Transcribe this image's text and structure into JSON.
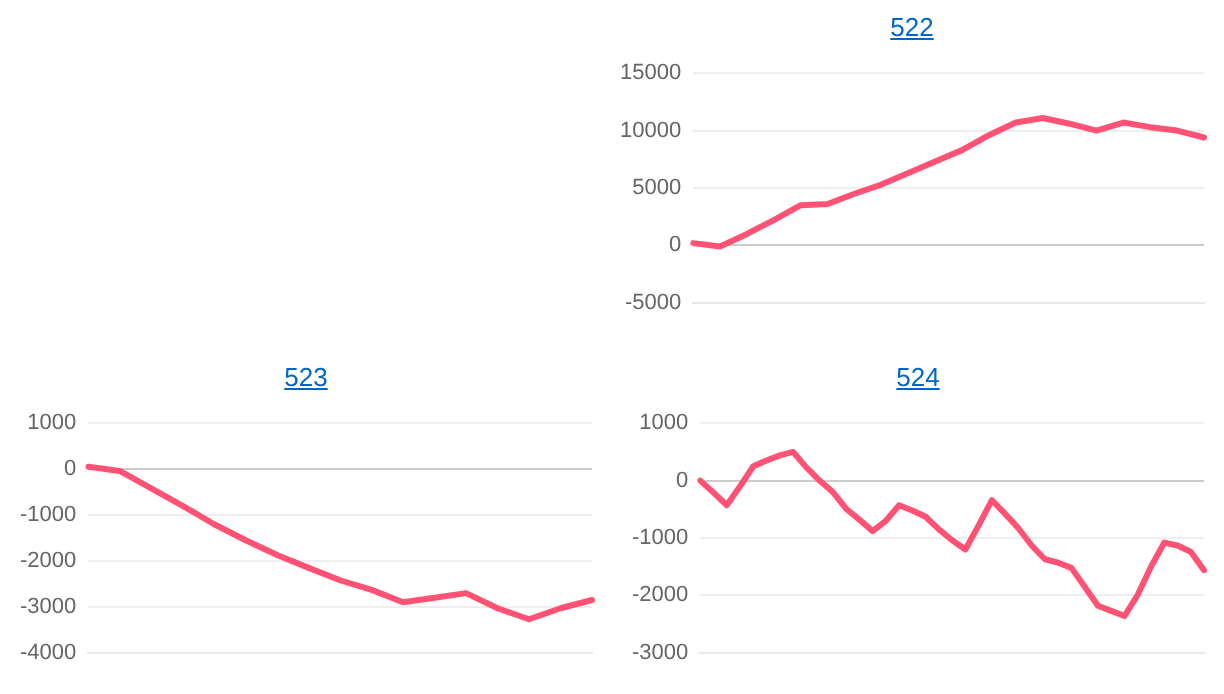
{
  "chart_data": [
    {
      "type": "line",
      "title": "522",
      "categories": [
        null,
        null,
        null,
        null,
        null,
        null,
        null,
        null,
        null,
        null,
        null,
        null,
        null,
        null,
        null,
        null,
        null,
        null,
        null,
        null
      ],
      "tick_labels": "y",
      "grid": "y",
      "marker": "none",
      "series": [
        {
          "color": "#ff5274",
          "values": [
            200,
            -100,
            1000,
            2200,
            3500,
            3600,
            4500,
            5300,
            6300,
            7300,
            8300,
            9600,
            10700,
            11100,
            10600,
            10000,
            10700,
            10300,
            10000,
            9400
          ]
        }
      ],
      "ylim": [
        -5000,
        15000
      ],
      "yticks": [
        -5000,
        0,
        5000,
        10000,
        15000
      ]
    },
    {
      "type": "line",
      "title": "523",
      "categories": [
        null,
        null,
        null,
        null,
        null,
        null,
        null,
        null,
        null,
        null,
        null,
        null,
        null,
        null,
        null,
        null,
        null
      ],
      "tick_labels": "y",
      "grid": "y",
      "marker": "none",
      "series": [
        {
          "color": "#ff5274",
          "values": [
            50,
            -40,
            -420,
            -800,
            -1200,
            -1550,
            -1870,
            -2150,
            -2420,
            -2630,
            -2900,
            -2800,
            -2700,
            -3030,
            -3270,
            -3030,
            -2850
          ]
        }
      ],
      "ylim": [
        -4000,
        1000
      ],
      "yticks": [
        -4000,
        -3000,
        -2000,
        -1000,
        0,
        1000
      ]
    },
    {
      "type": "line",
      "title": "524",
      "categories": [
        null,
        null,
        null,
        null,
        null,
        null,
        null,
        null,
        null,
        null,
        null,
        null,
        null,
        null,
        null,
        null,
        null,
        null,
        null,
        null,
        null,
        null,
        null,
        null,
        null,
        null,
        null,
        null,
        null,
        null,
        null,
        null,
        null,
        null,
        null,
        null,
        null,
        null,
        null
      ],
      "tick_labels": "y",
      "grid": "y",
      "marker": "none",
      "series": [
        {
          "color": "#ff5274",
          "values": [
            0,
            -210,
            -430,
            -100,
            250,
            350,
            440,
            500,
            230,
            0,
            -200,
            -490,
            -680,
            -880,
            -700,
            -430,
            -520,
            -630,
            -850,
            -1040,
            -1200,
            -780,
            -340,
            -580,
            -830,
            -1130,
            -1370,
            -1430,
            -1520,
            -1850,
            -2180,
            -2270,
            -2360,
            -1990,
            -1500,
            -1080,
            -1130,
            -1240,
            -1560
          ]
        }
      ],
      "ylim": [
        -3000,
        1000
      ],
      "yticks": [
        -3000,
        -2000,
        -1000,
        0,
        1000
      ]
    }
  ]
}
